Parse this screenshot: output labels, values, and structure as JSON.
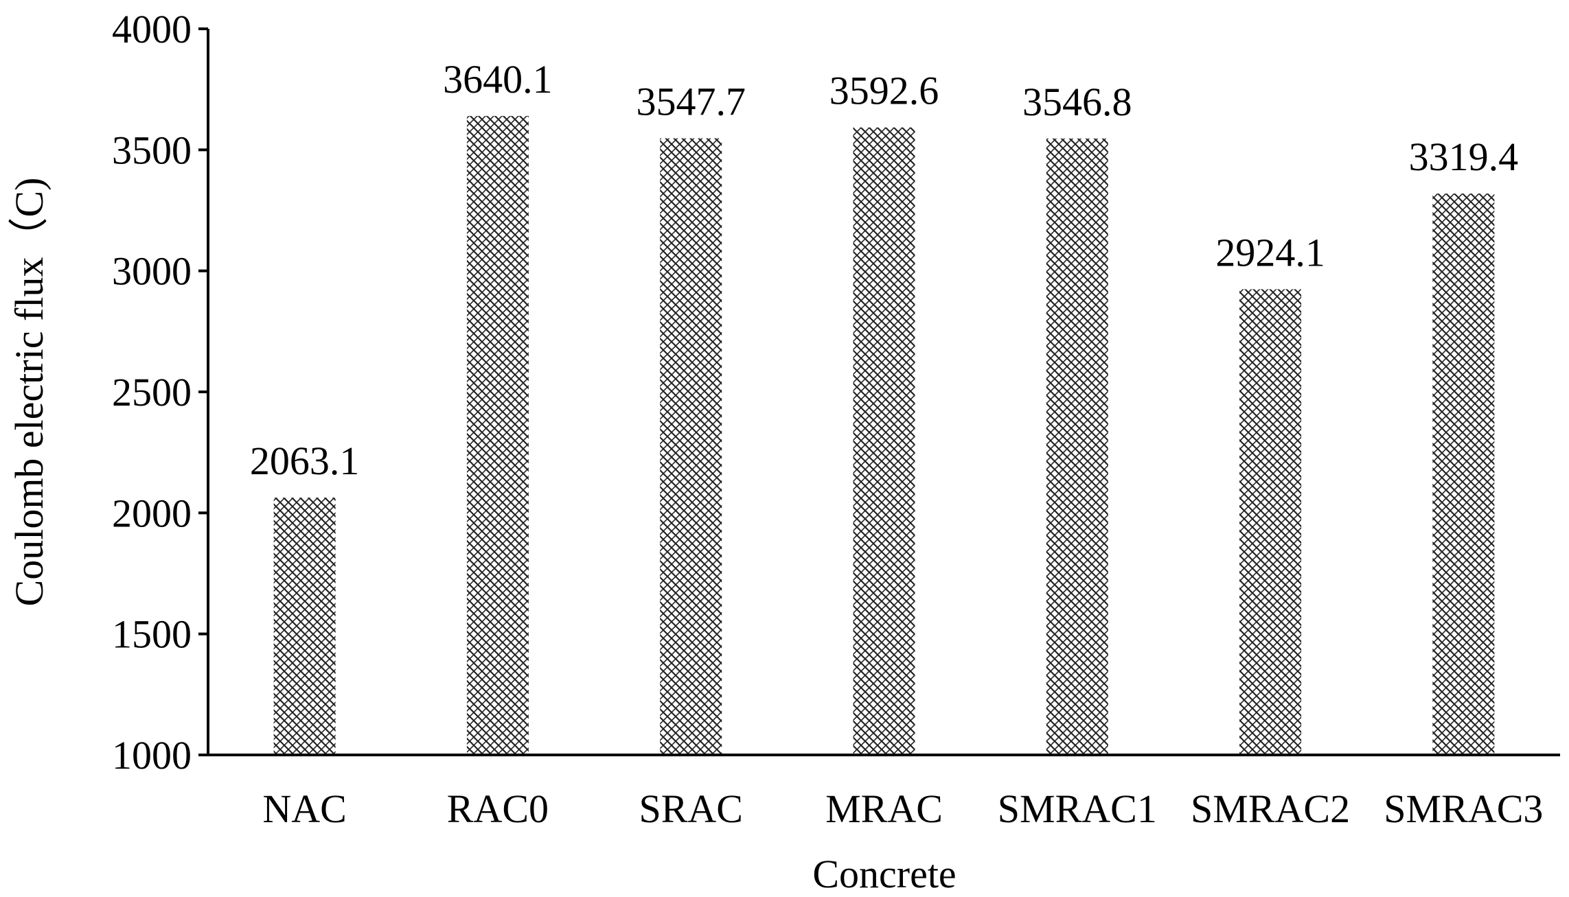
{
  "chart_data": {
    "type": "bar",
    "title": "",
    "xlabel": "Concrete",
    "ylabel": "Coulomb electric flux（C)",
    "categories": [
      "NAC",
      "RAC0",
      "SRAC",
      "MRAC",
      "SMRAC1",
      "SMRAC2",
      "SMRAC3"
    ],
    "values": [
      2063.1,
      3640.1,
      3547.7,
      3592.6,
      3546.8,
      2924.1,
      3319.4
    ],
    "data_labels": [
      "2063.1",
      "3640.1",
      "3547.7",
      "3592.6",
      "3546.8",
      "2924.1",
      "3319.4"
    ],
    "ylim": [
      1000,
      4000
    ],
    "yticks": [
      1000,
      1500,
      2000,
      2500,
      3000,
      3500,
      4000
    ],
    "ytick_labels": [
      "1000",
      "1500",
      "2000",
      "2500",
      "3000",
      "3500",
      "4000"
    ],
    "grid": false,
    "legend": "none",
    "bar_fill": "crosshatch pattern",
    "colors": {
      "bar_pattern": "#1a1a1a",
      "axis": "#000000",
      "background": "#ffffff"
    }
  }
}
